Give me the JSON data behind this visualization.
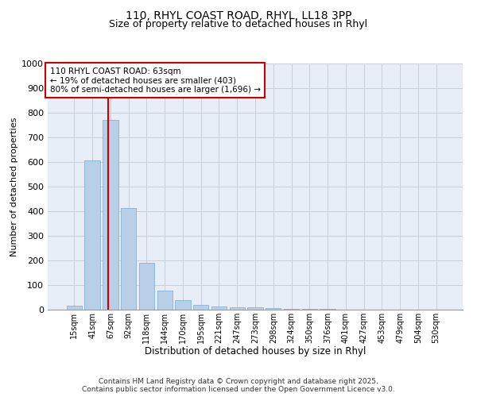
{
  "title_line1": "110, RHYL COAST ROAD, RHYL, LL18 3PP",
  "title_line2": "Size of property relative to detached houses in Rhyl",
  "xlabel": "Distribution of detached houses by size in Rhyl",
  "ylabel": "Number of detached properties",
  "footnote_line1": "Contains HM Land Registry data © Crown copyright and database right 2025.",
  "footnote_line2": "Contains public sector information licensed under the Open Government Licence v3.0.",
  "annotation_line1": "110 RHYL COAST ROAD: 63sqm",
  "annotation_line2": "← 19% of detached houses are smaller (403)",
  "annotation_line3": "80% of semi-detached houses are larger (1,696) →",
  "bar_labels": [
    "15sqm",
    "41sqm",
    "67sqm",
    "92sqm",
    "118sqm",
    "144sqm",
    "170sqm",
    "195sqm",
    "221sqm",
    "247sqm",
    "273sqm",
    "298sqm",
    "324sqm",
    "350sqm",
    "376sqm",
    "401sqm",
    "427sqm",
    "453sqm",
    "479sqm",
    "504sqm",
    "530sqm"
  ],
  "bar_values": [
    15,
    605,
    770,
    413,
    190,
    78,
    38,
    18,
    12,
    10,
    10,
    5,
    3,
    2,
    2,
    1,
    1,
    1,
    0,
    0,
    0
  ],
  "bar_color": "#b8cfe8",
  "bar_edge_color": "#7aaad0",
  "property_line_x": 1.85,
  "property_line_color": "#cc0000",
  "ylim": [
    0,
    1000
  ],
  "yticks": [
    0,
    100,
    200,
    300,
    400,
    500,
    600,
    700,
    800,
    900,
    1000
  ],
  "background_color": "#e8eef8",
  "grid_color": "#c8d0dc",
  "title_fontsize": 10,
  "subtitle_fontsize": 9,
  "annotation_fontsize": 7.5,
  "xlabel_fontsize": 8.5,
  "ylabel_fontsize": 8,
  "tick_fontsize": 7,
  "ytick_fontsize": 8,
  "footnote_fontsize": 6.5
}
